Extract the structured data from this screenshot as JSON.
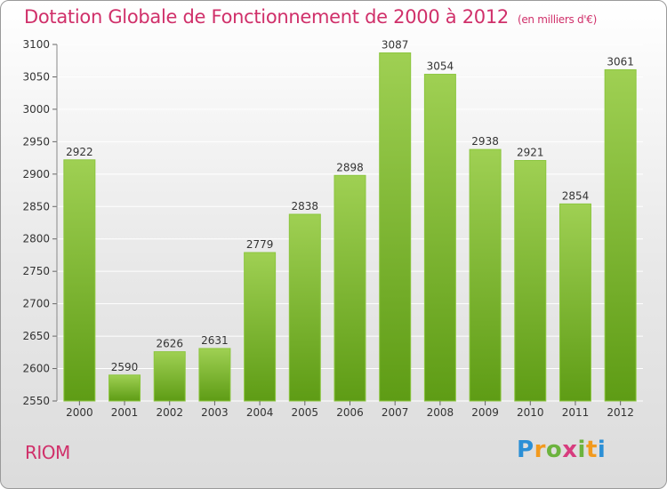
{
  "page": {
    "title": "Dotation Globale de Fonctionnement de 2000 à 2012",
    "unit_note": "(en milliers d'€)",
    "place": "RIOM",
    "logo": {
      "text": "Proxiti",
      "letters": [
        "P",
        "r",
        "o",
        "x",
        "i",
        "t",
        "i"
      ]
    }
  },
  "chart_data": {
    "type": "bar",
    "title": "Dotation Globale de Fonctionnement de 2000 à 2012",
    "subtitle": "(en milliers d'€)",
    "xlabel": "",
    "ylabel": "",
    "categories": [
      "2000",
      "2001",
      "2002",
      "2003",
      "2004",
      "2005",
      "2006",
      "2007",
      "2008",
      "2009",
      "2010",
      "2011",
      "2012"
    ],
    "values": [
      2922,
      2590,
      2626,
      2631,
      2779,
      2838,
      2898,
      3087,
      3054,
      2938,
      2921,
      2854,
      3061
    ],
    "ylim": [
      2550,
      3100
    ],
    "yticks": [
      2550,
      2600,
      2650,
      2700,
      2750,
      2800,
      2850,
      2900,
      2950,
      3000,
      3050,
      3100
    ],
    "grid": true,
    "colors": {
      "bar_light": "#9fd053",
      "bar_dark": "#5e9c15",
      "grid": "#ffffff",
      "title": "#d0306a"
    }
  }
}
